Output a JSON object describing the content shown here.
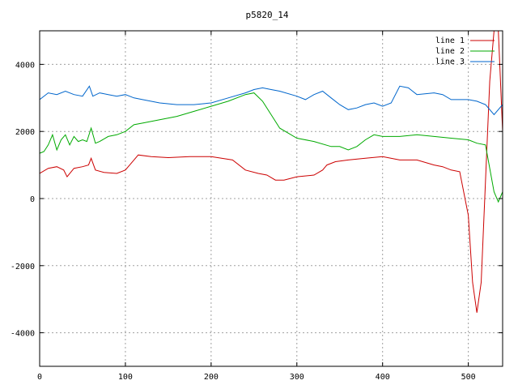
{
  "chart_data": {
    "type": "line",
    "title": "p5820_14",
    "xlabel": "",
    "ylabel": "",
    "xlim": [
      0,
      540
    ],
    "ylim": [
      -5000,
      5000
    ],
    "xticks": [
      0,
      100,
      200,
      300,
      400,
      500
    ],
    "yticks": [
      -4000,
      -2000,
      0,
      2000,
      4000
    ],
    "grid": true,
    "legend_position": "top-right",
    "series": [
      {
        "name": "line 1",
        "color": "#cc0000",
        "x": [
          0,
          10,
          20,
          28,
          32,
          40,
          50,
          57,
          60,
          65,
          75,
          90,
          100,
          110,
          115,
          130,
          150,
          175,
          200,
          225,
          240,
          255,
          265,
          275,
          285,
          300,
          320,
          330,
          335,
          345,
          360,
          380,
          400,
          420,
          440,
          460,
          470,
          480,
          490,
          500,
          505,
          510,
          515,
          520,
          525,
          530,
          535,
          540
        ],
        "y": [
          750,
          900,
          950,
          850,
          650,
          900,
          950,
          1000,
          1200,
          850,
          780,
          750,
          850,
          1150,
          1300,
          1250,
          1220,
          1250,
          1250,
          1150,
          850,
          750,
          700,
          550,
          550,
          650,
          700,
          850,
          1000,
          1100,
          1150,
          1200,
          1250,
          1150,
          1150,
          1000,
          950,
          850,
          800,
          -500,
          -2500,
          -3400,
          -2500,
          500,
          3500,
          5000,
          5000,
          2000
        ]
      },
      {
        "name": "line 2",
        "color": "#00aa00",
        "x": [
          0,
          5,
          10,
          15,
          20,
          25,
          30,
          35,
          40,
          45,
          50,
          55,
          60,
          65,
          70,
          80,
          90,
          100,
          110,
          120,
          140,
          160,
          180,
          200,
          220,
          240,
          250,
          260,
          270,
          280,
          300,
          320,
          340,
          350,
          360,
          370,
          380,
          390,
          400,
          420,
          440,
          460,
          480,
          500,
          510,
          520,
          530,
          535,
          540
        ],
        "y": [
          1350,
          1400,
          1600,
          1900,
          1450,
          1750,
          1900,
          1600,
          1850,
          1700,
          1750,
          1700,
          2100,
          1650,
          1700,
          1850,
          1900,
          2000,
          2200,
          2250,
          2350,
          2450,
          2600,
          2750,
          2900,
          3100,
          3150,
          2900,
          2500,
          2100,
          1800,
          1700,
          1550,
          1550,
          1450,
          1550,
          1750,
          1900,
          1850,
          1850,
          1900,
          1850,
          1800,
          1750,
          1650,
          1600,
          200,
          -100,
          200
        ]
      },
      {
        "name": "line 3",
        "color": "#0066cc",
        "x": [
          0,
          10,
          20,
          30,
          40,
          50,
          58,
          62,
          70,
          80,
          90,
          100,
          110,
          120,
          140,
          160,
          180,
          200,
          220,
          240,
          250,
          260,
          270,
          280,
          300,
          310,
          320,
          330,
          340,
          350,
          360,
          370,
          380,
          390,
          400,
          410,
          420,
          430,
          440,
          460,
          470,
          480,
          500,
          510,
          520,
          530,
          540
        ],
        "y": [
          2950,
          3150,
          3100,
          3200,
          3100,
          3050,
          3350,
          3050,
          3150,
          3100,
          3050,
          3100,
          3000,
          2950,
          2850,
          2800,
          2800,
          2850,
          3000,
          3150,
          3250,
          3300,
          3250,
          3200,
          3050,
          2950,
          3100,
          3200,
          3000,
          2800,
          2650,
          2700,
          2800,
          2850,
          2750,
          2850,
          3350,
          3300,
          3100,
          3150,
          3100,
          2950,
          2950,
          2900,
          2800,
          2500,
          2800
        ]
      }
    ]
  }
}
